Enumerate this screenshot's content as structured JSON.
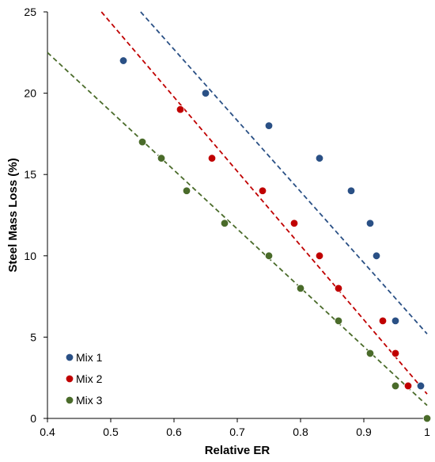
{
  "chart_data": {
    "type": "scatter",
    "title": "",
    "xlabel": "Relative ER",
    "ylabel": "Steel Mass Loss (%)",
    "xlim": [
      0.4,
      1.0
    ],
    "ylim": [
      0,
      25
    ],
    "x_ticks": [
      "0.4",
      "0.5",
      "0.6",
      "0.7",
      "0.8",
      "0.9",
      "1"
    ],
    "y_ticks": [
      "0",
      "5",
      "10",
      "15",
      "20",
      "25"
    ],
    "grid": false,
    "legend_position": "bottom-left",
    "series": [
      {
        "name": "Mix 1",
        "color": "#2a5085",
        "points": [
          [
            0.52,
            22
          ],
          [
            0.65,
            20
          ],
          [
            0.75,
            18
          ],
          [
            0.83,
            16
          ],
          [
            0.88,
            14
          ],
          [
            0.91,
            12
          ],
          [
            0.92,
            10
          ],
          [
            0.95,
            6
          ],
          [
            0.99,
            2
          ]
        ],
        "trendline": [
          [
            0.5473,
            25
          ],
          [
            1.0,
            5.2
          ]
        ]
      },
      {
        "name": "Mix 2",
        "color": "#c00000",
        "points": [
          [
            0.61,
            19
          ],
          [
            0.66,
            16
          ],
          [
            0.74,
            14
          ],
          [
            0.79,
            12
          ],
          [
            0.83,
            10
          ],
          [
            0.86,
            8
          ],
          [
            0.93,
            6
          ],
          [
            0.95,
            4
          ],
          [
            0.97,
            2
          ]
        ],
        "trendline": [
          [
            0.4853,
            25
          ],
          [
            1.0,
            1.5
          ]
        ]
      },
      {
        "name": "Mix 3",
        "color": "#4a6b2a",
        "points": [
          [
            0.55,
            17
          ],
          [
            0.58,
            16
          ],
          [
            0.62,
            14
          ],
          [
            0.68,
            12
          ],
          [
            0.75,
            10
          ],
          [
            0.8,
            8
          ],
          [
            0.86,
            6
          ],
          [
            0.91,
            4
          ],
          [
            0.95,
            2
          ],
          [
            1.0,
            0
          ]
        ],
        "trendline": [
          [
            0.4,
            22.5
          ],
          [
            1.0,
            0.8
          ]
        ]
      }
    ]
  }
}
